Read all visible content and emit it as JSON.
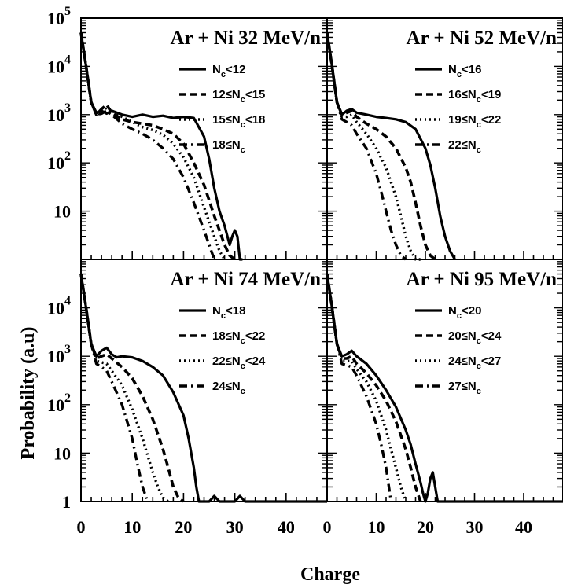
{
  "figure": {
    "xlabel": "Charge",
    "ylabel": "Probability (a.u)"
  },
  "chart_data": [
    {
      "type": "line",
      "title": "Ar + Ni 32 MeV/n",
      "xlim": [
        0,
        48
      ],
      "ylim": [
        1,
        100000
      ],
      "yscale": "log",
      "grid": false,
      "legend_position": "top-right",
      "x_tick_labels": [
        "0",
        "10",
        "20",
        "30",
        "40"
      ],
      "y_tick_labels": [
        {
          "value": 100000,
          "base": "10",
          "exp": "5"
        },
        {
          "value": 10000,
          "base": "10",
          "exp": "4"
        },
        {
          "value": 1000,
          "base": "10",
          "exp": "3"
        },
        {
          "value": 100,
          "base": "10",
          "exp": "2"
        },
        {
          "value": 10,
          "base": "10",
          "exp": ""
        }
      ],
      "series": [
        {
          "name_main": "N",
          "name_sub": "c",
          "name_rest": "<12",
          "style": "solid",
          "x": [
            0,
            1,
            2,
            3,
            4,
            5,
            6,
            8,
            10,
            12,
            14,
            16,
            18,
            20,
            22,
            24,
            25,
            26,
            27,
            28,
            29,
            29.5,
            30,
            30.5,
            31,
            31.5
          ],
          "y": [
            50000,
            10000,
            1800,
            1100,
            1200,
            1050,
            1200,
            1000,
            900,
            1000,
            900,
            950,
            850,
            900,
            850,
            350,
            120,
            30,
            10,
            5,
            2,
            3,
            4,
            3,
            1,
            1
          ]
        },
        {
          "name_main": "",
          "name_sub": "",
          "name_rest": "12≤N",
          "name_sub2": "c",
          "name_rest2": "<15",
          "style": "dashed",
          "x": [
            0,
            1,
            2,
            3,
            4,
            5,
            6,
            8,
            10,
            12,
            14,
            16,
            18,
            20,
            22,
            24,
            26,
            28,
            29,
            30
          ],
          "y": [
            50000,
            10000,
            1800,
            1000,
            1300,
            1600,
            1100,
            800,
            700,
            650,
            600,
            500,
            400,
            250,
            100,
            35,
            8,
            2,
            1.2,
            1
          ]
        },
        {
          "name_main": "",
          "name_sub": "",
          "name_rest": "15≤N",
          "name_sub2": "c",
          "name_rest2": "<18",
          "style": "dotted",
          "x": [
            0,
            1,
            2,
            3,
            4,
            5,
            6,
            8,
            10,
            12,
            14,
            16,
            18,
            20,
            22,
            24,
            26,
            27,
            28
          ],
          "y": [
            50000,
            10000,
            1800,
            1000,
            1100,
            1400,
            1200,
            900,
            700,
            550,
            480,
            380,
            250,
            130,
            50,
            12,
            3,
            1.5,
            1
          ]
        },
        {
          "name_main": "",
          "name_sub": "",
          "name_rest": "18≤N",
          "name_sub2": "c",
          "name_rest2": "",
          "style": "dash-dot",
          "x": [
            0,
            1,
            2,
            3,
            4,
            5,
            6,
            8,
            10,
            12,
            14,
            16,
            18,
            20,
            22,
            24,
            25,
            26
          ],
          "y": [
            50000,
            10000,
            1800,
            1000,
            1050,
            1200,
            1000,
            650,
            500,
            400,
            300,
            200,
            120,
            50,
            15,
            4,
            2,
            1
          ]
        }
      ]
    },
    {
      "type": "line",
      "title": "Ar + Ni 52 MeV/n",
      "xlim": [
        0,
        48
      ],
      "ylim": [
        1,
        100000
      ],
      "yscale": "log",
      "grid": false,
      "legend_position": "top-right",
      "x_tick_labels": [],
      "y_tick_labels": [],
      "series": [
        {
          "name_main": "N",
          "name_sub": "c",
          "name_rest": "<16",
          "style": "solid",
          "x": [
            0,
            1,
            2,
            3,
            4,
            5,
            6,
            8,
            10,
            12,
            14,
            16,
            18,
            20,
            21,
            22,
            23,
            24,
            25,
            26
          ],
          "y": [
            50000,
            10000,
            1800,
            1000,
            1200,
            1300,
            1100,
            1000,
            900,
            850,
            800,
            700,
            500,
            200,
            90,
            30,
            8,
            3,
            1.5,
            1
          ]
        },
        {
          "name_main": "",
          "name_sub": "",
          "name_rest": "16≤N",
          "name_sub2": "c",
          "name_rest2": "<19",
          "style": "dashed",
          "x": [
            0,
            1,
            2,
            3,
            4,
            5,
            6,
            8,
            10,
            12,
            14,
            16,
            17,
            18,
            19,
            20,
            21,
            22
          ],
          "y": [
            50000,
            10000,
            1800,
            1000,
            1100,
            1200,
            900,
            650,
            500,
            350,
            200,
            80,
            40,
            15,
            5,
            2,
            1.2,
            1
          ]
        },
        {
          "name_main": "",
          "name_sub": "",
          "name_rest": "19≤N",
          "name_sub2": "c",
          "name_rest2": "<22",
          "style": "dotted",
          "x": [
            0,
            1,
            2,
            3,
            4,
            5,
            6,
            8,
            10,
            12,
            14,
            15,
            16,
            17,
            18,
            19
          ],
          "y": [
            50000,
            10000,
            1800,
            900,
            900,
            1000,
            700,
            400,
            200,
            80,
            20,
            8,
            3,
            1.5,
            1,
            1
          ]
        },
        {
          "name_main": "",
          "name_sub": "",
          "name_rest": "22≤N",
          "name_sub2": "c",
          "name_rest2": "",
          "style": "dash-dot",
          "x": [
            0,
            1,
            2,
            3,
            4,
            5,
            6,
            8,
            10,
            11,
            12,
            13,
            14,
            15,
            16
          ],
          "y": [
            50000,
            10000,
            1800,
            800,
            700,
            600,
            400,
            200,
            60,
            25,
            10,
            4,
            2,
            1.2,
            1
          ]
        }
      ]
    },
    {
      "type": "line",
      "title": "Ar + Ni 74 MeV/n",
      "xlim": [
        0,
        48
      ],
      "ylim": [
        1,
        100000
      ],
      "yscale": "log",
      "grid": false,
      "legend_position": "top-right",
      "x_tick_labels": [
        "0",
        "10",
        "20",
        "30",
        "40"
      ],
      "y_tick_labels": [
        {
          "value": 10000,
          "base": "10",
          "exp": "4"
        },
        {
          "value": 1000,
          "base": "10",
          "exp": "3"
        },
        {
          "value": 100,
          "base": "10",
          "exp": "2"
        },
        {
          "value": 10,
          "base": "10",
          "exp": ""
        },
        {
          "value": 1,
          "base": "1",
          "exp": ""
        }
      ],
      "series": [
        {
          "name_main": "N",
          "name_sub": "c",
          "name_rest": "<18",
          "style": "solid",
          "x": [
            0,
            1,
            2,
            3,
            4,
            5,
            6,
            7,
            8,
            10,
            12,
            14,
            16,
            18,
            20,
            21,
            22,
            22.5,
            23,
            25,
            26,
            27,
            30,
            31,
            32,
            40,
            48
          ],
          "y": [
            50000,
            10000,
            1800,
            1000,
            1300,
            1500,
            1100,
            950,
            1000,
            950,
            800,
            600,
            400,
            180,
            60,
            20,
            5,
            2,
            1,
            1,
            1.3,
            1,
            1,
            1.3,
            1,
            1,
            1
          ]
        },
        {
          "name_main": "",
          "name_sub": "",
          "name_rest": "18≤N",
          "name_sub2": "c",
          "name_rest2": "<22",
          "style": "dashed",
          "x": [
            0,
            1,
            2,
            3,
            4,
            5,
            6,
            8,
            10,
            12,
            14,
            16,
            17,
            18,
            19,
            20
          ],
          "y": [
            50000,
            10000,
            1800,
            900,
            1000,
            1100,
            900,
            600,
            350,
            150,
            50,
            12,
            5,
            2,
            1.2,
            1
          ]
        },
        {
          "name_main": "",
          "name_sub": "",
          "name_rest": "22≤N",
          "name_sub2": "c",
          "name_rest2": "<24",
          "style": "dotted",
          "x": [
            0,
            1,
            2,
            3,
            4,
            5,
            6,
            8,
            10,
            12,
            14,
            15,
            16,
            17
          ],
          "y": [
            50000,
            10000,
            1800,
            800,
            750,
            700,
            500,
            250,
            80,
            20,
            4,
            2,
            1.2,
            1
          ]
        },
        {
          "name_main": "",
          "name_sub": "",
          "name_rest": "24≤N",
          "name_sub2": "c",
          "name_rest2": "",
          "style": "dash-dot",
          "x": [
            0,
            1,
            2,
            3,
            4,
            5,
            6,
            8,
            10,
            11,
            12,
            13
          ],
          "y": [
            50000,
            10000,
            1800,
            700,
            600,
            500,
            300,
            100,
            20,
            6,
            2,
            1
          ]
        }
      ]
    },
    {
      "type": "line",
      "title": "Ar + Ni 95 MeV/n",
      "xlim": [
        0,
        48
      ],
      "ylim": [
        1,
        100000
      ],
      "yscale": "log",
      "grid": false,
      "legend_position": "top-right",
      "x_tick_labels": [
        "0",
        "10",
        "20",
        "30",
        "40"
      ],
      "y_tick_labels": [],
      "series": [
        {
          "name_main": "N",
          "name_sub": "c",
          "name_rest": "<20",
          "style": "solid",
          "x": [
            0,
            1,
            2,
            3,
            4,
            5,
            6,
            8,
            10,
            12,
            14,
            16,
            17,
            18,
            19,
            19.5,
            20,
            20.5,
            21,
            21.5,
            22,
            22.5,
            23,
            48
          ],
          "y": [
            50000,
            10000,
            1800,
            1000,
            1100,
            1300,
            1000,
            700,
            400,
            200,
            90,
            30,
            15,
            6,
            2.5,
            1.5,
            1,
            1.5,
            3,
            4,
            2,
            1,
            1,
            1
          ]
        },
        {
          "name_main": "",
          "name_sub": "",
          "name_rest": "20≤N",
          "name_sub2": "c",
          "name_rest2": "<24",
          "style": "dashed",
          "x": [
            0,
            1,
            2,
            3,
            4,
            5,
            6,
            8,
            10,
            12,
            14,
            16,
            17,
            18,
            19
          ],
          "y": [
            50000,
            10000,
            1800,
            900,
            900,
            1000,
            700,
            450,
            250,
            120,
            45,
            12,
            5,
            2,
            1
          ]
        },
        {
          "name_main": "",
          "name_sub": "",
          "name_rest": "24≤N",
          "name_sub2": "c",
          "name_rest2": "<27",
          "style": "dotted",
          "x": [
            0,
            1,
            2,
            3,
            4,
            5,
            6,
            8,
            10,
            12,
            13,
            14,
            15,
            16
          ],
          "y": [
            50000,
            10000,
            1800,
            800,
            800,
            800,
            550,
            300,
            120,
            30,
            12,
            5,
            2,
            1
          ]
        },
        {
          "name_main": "",
          "name_sub": "",
          "name_rest": "27≤N",
          "name_sub2": "c",
          "name_rest2": "",
          "style": "dash-dot",
          "x": [
            0,
            1,
            2,
            3,
            4,
            5,
            6,
            8,
            10,
            11,
            12,
            13
          ],
          "y": [
            50000,
            10000,
            1800,
            700,
            650,
            600,
            400,
            150,
            40,
            15,
            5,
            1
          ]
        }
      ]
    }
  ]
}
